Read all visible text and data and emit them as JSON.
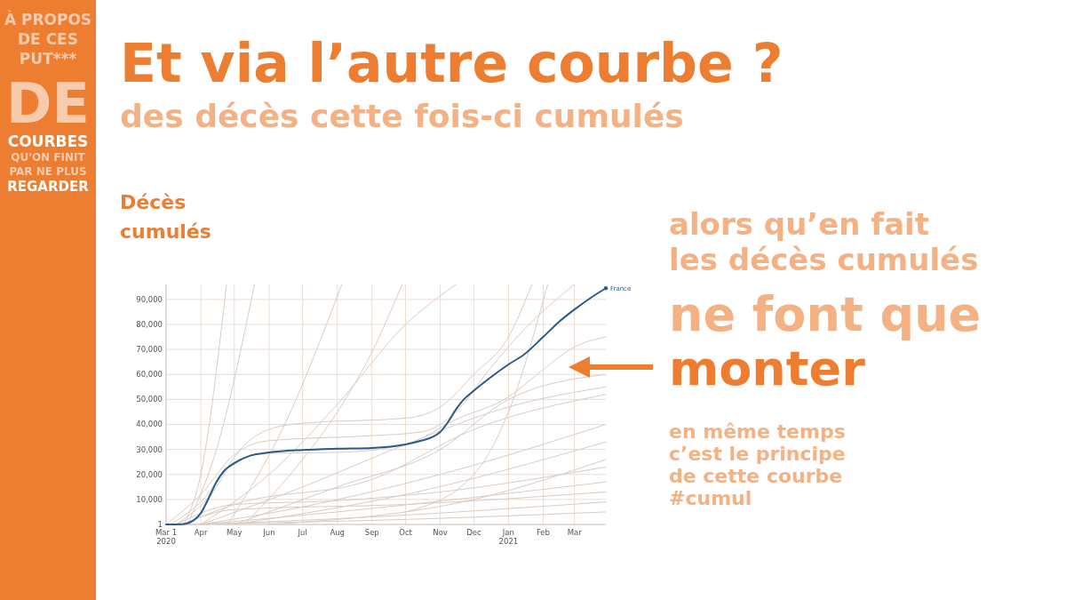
{
  "chart_data": {
    "type": "line",
    "title": "Et via l’autre courbe ?",
    "subtitle": "des décès cette fois-ci cumulés",
    "ylabel": "Décès\ncumulés",
    "annotations": [
      "À PROPOS\nDE CES\nPUT***\nDE\nCOURBES\nQU'ON FINIT\nPAR NE PLUS\nREGARDER",
      "alors qu’en fait\nles décès cumulés",
      "ne font que",
      "monter",
      "en même temps\nc’est le principe\nde cette courbe\n#cumul"
    ],
    "xlim": [
      "2020-03-01",
      "2021-03-29"
    ],
    "ylim": [
      0,
      96000
    ],
    "xticks": [
      {
        "value": "2020-03-01",
        "label": "Mar 1\n2020"
      },
      {
        "value": "2020-04-01",
        "label": "Apr"
      },
      {
        "value": "2020-05-01",
        "label": "May"
      },
      {
        "value": "2020-06-01",
        "label": "Jun"
      },
      {
        "value": "2020-07-01",
        "label": "Jul"
      },
      {
        "value": "2020-08-01",
        "label": "Aug"
      },
      {
        "value": "2020-09-01",
        "label": "Sep"
      },
      {
        "value": "2020-10-01",
        "label": "Oct"
      },
      {
        "value": "2020-11-01",
        "label": "Nov"
      },
      {
        "value": "2020-12-01",
        "label": "Dec"
      },
      {
        "value": "2021-01-01",
        "label": "Jan\n2021"
      },
      {
        "value": "2021-02-01",
        "label": "Feb"
      },
      {
        "value": "2021-03-01",
        "label": "Mar"
      }
    ],
    "yticks": [
      1,
      {
        "value": 10000,
        "label": "10,000"
      },
      {
        "value": 20000,
        "label": "20,000"
      },
      {
        "value": 30000,
        "label": "30,000"
      },
      {
        "value": 40000,
        "label": "40,000"
      },
      {
        "value": 50000,
        "label": "50,000"
      },
      {
        "value": 60000,
        "label": "60,000"
      },
      {
        "value": 70000,
        "label": "70,000"
      },
      {
        "value": 80000,
        "label": "80,000"
      },
      {
        "value": 90000,
        "label": "90,000"
      }
    ],
    "grid": true,
    "series": [
      {
        "color": "#d9ccc3",
        "x": [
          "2020-03-17",
          "2020-04-01",
          "2020-04-24"
        ],
        "values": [
          0,
          20000,
          96000
        ]
      },
      {
        "color": "#d9ccc3",
        "x": [
          "2020-03-20",
          "2020-04-15",
          "2020-05-19"
        ],
        "values": [
          0,
          30000,
          96000
        ]
      },
      {
        "color": "#d9ccc3",
        "x": [
          "2020-04-25",
          "2020-06-15",
          "2020-08-05"
        ],
        "values": [
          0,
          40000,
          96000
        ]
      },
      {
        "color": "#d9ccc3",
        "x": [
          "2020-05-10",
          "2020-07-01",
          "2020-08-01",
          "2020-09-01",
          "2020-09-28"
        ],
        "values": [
          0,
          26000,
          45000,
          69000,
          96000
        ]
      },
      {
        "color": "#d9ccc3",
        "x": [
          "2020-04-01",
          "2020-06-01",
          "2020-08-01",
          "2020-10-01",
          "2020-11-15"
        ],
        "values": [
          0,
          20000,
          48000,
          80000,
          96000
        ]
      },
      {
        "color": "#d9ccc3",
        "x": [
          "2020-03-10",
          "2020-04-15",
          "2020-05-01",
          "2020-06-01",
          "2020-07-01",
          "2020-10-01",
          "2020-11-01",
          "2020-12-01",
          "2021-01-01",
          "2021-01-22"
        ],
        "values": [
          0,
          15000,
          27000,
          38000,
          40500,
          42500,
          47000,
          60000,
          75000,
          96000
        ]
      },
      {
        "color": "#d9ccc3",
        "x": [
          "2020-03-01",
          "2020-04-01",
          "2020-05-01",
          "2020-06-01",
          "2020-09-01",
          "2020-10-15",
          "2020-11-15",
          "2020-12-15",
          "2021-01-15",
          "2021-03-01"
        ],
        "values": [
          0,
          12000,
          28000,
          33500,
          35500,
          37000,
          45000,
          62000,
          78000,
          96000
        ]
      },
      {
        "color": "#d9ccc3",
        "x": [
          "2020-03-05",
          "2020-04-01",
          "2020-05-01",
          "2020-06-01",
          "2020-08-01",
          "2020-10-01",
          "2020-11-15",
          "2021-01-01",
          "2021-02-01",
          "2021-03-01",
          "2021-03-29"
        ],
        "values": [
          0,
          9000,
          25000,
          28500,
          28800,
          32000,
          42000,
          51000,
          62000,
          71000,
          75000
        ]
      },
      {
        "color": "#d9ccc3",
        "x": [
          "2020-05-01",
          "2020-08-01",
          "2020-11-01",
          "2021-01-01",
          "2021-03-29"
        ],
        "values": [
          0,
          15000,
          30000,
          50000,
          60000
        ]
      },
      {
        "color": "#d9ccc3",
        "x": [
          "2020-04-01",
          "2020-07-01",
          "2020-10-01",
          "2021-01-01",
          "2021-03-29"
        ],
        "values": [
          0,
          15000,
          32000,
          47000,
          55000
        ]
      },
      {
        "color": "#d9ccc3",
        "x": [
          "2020-03-15",
          "2020-05-01",
          "2020-09-01",
          "2020-12-01",
          "2021-03-29"
        ],
        "values": [
          0,
          8000,
          18000,
          38000,
          52000
        ]
      },
      {
        "color": "#d9ccc3",
        "x": [
          "2020-04-01",
          "2020-07-01",
          "2020-11-01",
          "2021-03-29"
        ],
        "values": [
          0,
          7000,
          20000,
          40000
        ]
      },
      {
        "color": "#d9ccc3",
        "x": [
          "2020-05-01",
          "2020-10-01",
          "2021-03-29"
        ],
        "values": [
          0,
          12000,
          33000
        ]
      },
      {
        "color": "#d9ccc3",
        "x": [
          "2020-03-10",
          "2020-05-01",
          "2020-08-01",
          "2020-11-01",
          "2021-03-29"
        ],
        "values": [
          0,
          8000,
          9500,
          13000,
          23000
        ]
      },
      {
        "color": "#d9ccc3",
        "x": [
          "2020-04-01",
          "2020-08-01",
          "2021-03-29"
        ],
        "values": [
          0,
          5000,
          17000
        ]
      },
      {
        "color": "#d9ccc3",
        "x": [
          "2020-03-15",
          "2020-05-01",
          "2020-10-01",
          "2021-03-29"
        ],
        "values": [
          0,
          6000,
          8000,
          13000
        ]
      },
      {
        "color": "#d9ccc3",
        "x": [
          "2020-04-01",
          "2020-09-01",
          "2021-03-29"
        ],
        "values": [
          0,
          3000,
          9000
        ]
      },
      {
        "color": "#d9ccc3",
        "x": [
          "2020-03-01",
          "2020-10-01",
          "2021-03-29"
        ],
        "values": [
          0,
          2000,
          5000
        ]
      },
      {
        "color": "#d9ccc3",
        "x": [
          "2020-10-01",
          "2020-12-01",
          "2021-01-01",
          "2021-02-05"
        ],
        "values": [
          5000,
          20000,
          45000,
          96000
        ]
      },
      {
        "color": "#d9ccc3",
        "x": [
          "2020-06-01",
          "2020-12-01",
          "2021-03-29"
        ],
        "values": [
          0,
          10000,
          26000
        ]
      },
      {
        "name": "France",
        "color": "#2b5a8a",
        "x": [
          "2020-03-01",
          "2020-03-15",
          "2020-03-25",
          "2020-04-01",
          "2020-04-08",
          "2020-04-15",
          "2020-04-22",
          "2020-05-01",
          "2020-05-15",
          "2020-06-01",
          "2020-07-01",
          "2020-08-01",
          "2020-09-01",
          "2020-10-01",
          "2020-10-15",
          "2020-10-25",
          "2020-11-01",
          "2020-11-08",
          "2020-11-15",
          "2020-11-22",
          "2020-12-01",
          "2020-12-15",
          "2021-01-01",
          "2021-01-15",
          "2021-02-01",
          "2021-02-15",
          "2021-03-01",
          "2021-03-15",
          "2021-03-29"
        ],
        "values": [
          0,
          100,
          1500,
          4500,
          10500,
          17000,
          21500,
          24500,
          27500,
          28800,
          29800,
          30300,
          30600,
          32000,
          33500,
          35000,
          37000,
          41000,
          46000,
          50000,
          53500,
          58500,
          64000,
          68000,
          75000,
          81000,
          86000,
          90500,
          94500
        ]
      }
    ]
  }
}
